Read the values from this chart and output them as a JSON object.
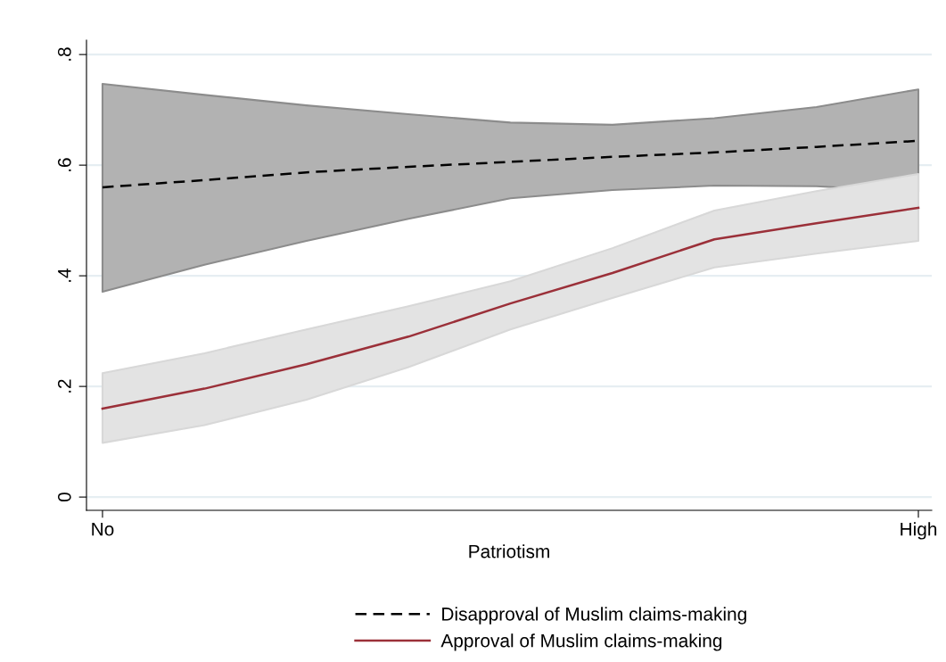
{
  "chart_data": {
    "type": "line",
    "xlabel": "Patriotism",
    "categories": [
      "No",
      null,
      null,
      null,
      null,
      null,
      null,
      null,
      "High"
    ],
    "ylim": [
      -0.024,
      0.826
    ],
    "yticks": [
      {
        "value": 0,
        "label": "0"
      },
      {
        "value": 0.2,
        "label": ".2"
      },
      {
        "value": 0.4,
        "label": ".4"
      },
      {
        "value": 0.6,
        "label": ".6"
      },
      {
        "value": 0.8,
        "label": ".8"
      }
    ],
    "grid": "y",
    "legend": "bottom",
    "marker": "none",
    "series": [
      {
        "name": "Disapproval of Muslim claims-making",
        "color": "#000000",
        "line_style": "dashed",
        "values": [
          0.56,
          0.573,
          0.587,
          0.597,
          0.606,
          0.615,
          0.623,
          0.633,
          0.644
        ],
        "lower": [
          0.371,
          0.42,
          0.463,
          0.503,
          0.54,
          0.555,
          0.563,
          0.562,
          0.552
        ],
        "upper": [
          0.747,
          0.727,
          0.708,
          0.692,
          0.677,
          0.673,
          0.685,
          0.705,
          0.737
        ]
      },
      {
        "name": "Approval of Muslim claims-making",
        "color": "#9b3039",
        "line_style": "solid",
        "values": [
          0.16,
          0.196,
          0.24,
          0.29,
          0.35,
          0.405,
          0.466,
          0.495,
          0.523
        ],
        "lower": [
          0.098,
          0.13,
          0.176,
          0.235,
          0.303,
          0.36,
          0.415,
          0.44,
          0.463
        ],
        "upper": [
          0.224,
          0.26,
          0.303,
          0.345,
          0.39,
          0.45,
          0.518,
          0.553,
          0.584
        ]
      }
    ]
  }
}
